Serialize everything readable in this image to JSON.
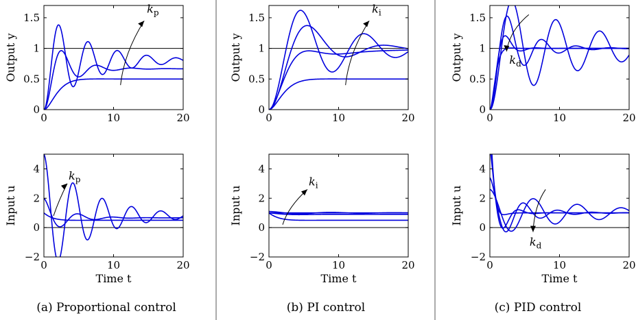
{
  "chart_data": [
    {
      "type": "line",
      "panel": "a-top",
      "ylabel": "Output y",
      "xlim": [
        0,
        20
      ],
      "ylim": [
        0,
        1.7
      ],
      "xticks": [
        "0",
        "10",
        "20"
      ],
      "yticks": [
        "0",
        "0.5",
        "1",
        "1.5"
      ],
      "reference_line": 1,
      "annotation": "kp",
      "series": [
        {
          "model": {
            "kind": "step",
            "final": 0.5,
            "zeta": 0.9,
            "wn": 0.9
          }
        },
        {
          "model": {
            "kind": "step",
            "final": 0.667,
            "zeta": 0.25,
            "wn": 1.3
          }
        },
        {
          "model": {
            "kind": "step",
            "final": 0.8,
            "zeta": 0.1,
            "wn": 1.5
          }
        }
      ]
    },
    {
      "type": "line",
      "panel": "a-bottom",
      "ylabel": "Input u",
      "xlabel": "Time t",
      "xlim": [
        0,
        20
      ],
      "ylim": [
        -2,
        5
      ],
      "xticks": [
        "0",
        "10",
        "20"
      ],
      "yticks": [
        "−2",
        "0",
        "2",
        "4"
      ],
      "reference_line": 0,
      "annotation": "kp",
      "series": [
        {
          "model": {
            "kind": "input",
            "start": 1.0,
            "final": 0.5,
            "zeta": 0.9,
            "wn": 0.9
          }
        },
        {
          "model": {
            "kind": "input",
            "start": 2.0,
            "final": 0.667,
            "zeta": 0.25,
            "wn": 1.3
          }
        },
        {
          "model": {
            "kind": "input",
            "start": 5.0,
            "final": 0.8,
            "zeta": 0.1,
            "wn": 1.5
          }
        }
      ]
    },
    {
      "type": "line",
      "panel": "b-top",
      "ylabel": "Output y",
      "xlim": [
        0,
        20
      ],
      "ylim": [
        0,
        1.7
      ],
      "xticks": [
        "0",
        "10",
        "20"
      ],
      "yticks": [
        "0",
        "0.5",
        "1",
        "1.5"
      ],
      "reference_line": 1,
      "annotation": "ki",
      "series": [
        {
          "model": {
            "kind": "step",
            "final": 0.5,
            "zeta": 0.9,
            "wn": 0.8
          }
        },
        {
          "model": {
            "kind": "slowint",
            "fast": 0.75,
            "zeta": 0.55,
            "wn": 0.7,
            "tau": 9
          }
        },
        {
          "model": {
            "kind": "step",
            "final": 1.0,
            "zeta": 0.3,
            "wn": 0.6
          }
        },
        {
          "model": {
            "kind": "step",
            "final": 1.0,
            "zeta": 0.15,
            "wn": 0.7
          }
        }
      ]
    },
    {
      "type": "line",
      "panel": "b-bottom",
      "ylabel": "Input u",
      "xlabel": "Time t",
      "xlim": [
        0,
        20
      ],
      "ylim": [
        -2,
        5
      ],
      "xticks": [
        "0",
        "10",
        "20"
      ],
      "yticks": [
        "−2",
        "0",
        "2",
        "4"
      ],
      "reference_line": 0,
      "annotation": "ki",
      "series": [
        {
          "model": {
            "kind": "input",
            "start": 1.0,
            "final": 0.5,
            "zeta": 0.9,
            "wn": 0.8,
            "amp": 0.2
          }
        },
        {
          "model": {
            "kind": "input",
            "start": 1.0,
            "final": 0.9,
            "zeta": 0.5,
            "wn": 0.7,
            "amp": 0.6
          }
        },
        {
          "model": {
            "kind": "input",
            "start": 1.0,
            "final": 1.0,
            "zeta": 0.3,
            "wn": 0.6,
            "amp": 0.9
          }
        },
        {
          "model": {
            "kind": "input",
            "start": 1.1,
            "final": 1.0,
            "zeta": 0.15,
            "wn": 0.7,
            "amp": 1.1
          }
        }
      ]
    },
    {
      "type": "line",
      "panel": "c-top",
      "ylabel": "Output y",
      "xlim": [
        0,
        20
      ],
      "ylim": [
        0,
        1.7
      ],
      "xticks": [
        "0",
        "10",
        "20"
      ],
      "yticks": [
        "0",
        "0.5",
        "1",
        "1.5"
      ],
      "reference_line": 1,
      "annotation": "kd",
      "series": [
        {
          "model": {
            "kind": "step",
            "final": 1.0,
            "zeta": 0.08,
            "wn": 1.0
          }
        },
        {
          "model": {
            "kind": "step",
            "final": 1.0,
            "zeta": 0.2,
            "wn": 1.3
          }
        },
        {
          "model": {
            "kind": "step",
            "final": 1.0,
            "zeta": 0.45,
            "wn": 1.6
          }
        },
        {
          "model": {
            "kind": "step",
            "final": 1.0,
            "zeta": 0.85,
            "wn": 2.0
          }
        }
      ]
    },
    {
      "type": "line",
      "panel": "c-bottom",
      "ylabel": "Input u",
      "xlabel": "Time t",
      "xlim": [
        0,
        20
      ],
      "ylim": [
        -2,
        5
      ],
      "xticks": [
        "0",
        "10",
        "20"
      ],
      "yticks": [
        "−2",
        "0",
        "2",
        "4"
      ],
      "reference_line": 0,
      "annotation": "kd",
      "series": [
        {
          "model": {
            "kind": "input",
            "start": 2.6,
            "final": 1.0,
            "zeta": 0.08,
            "wn": 1.0,
            "amp": 1.6
          }
        },
        {
          "model": {
            "kind": "input",
            "start": 3.4,
            "final": 1.0,
            "zeta": 0.2,
            "wn": 1.3,
            "amp": 3.3
          }
        },
        {
          "model": {
            "kind": "input",
            "start": 5.5,
            "final": 1.0,
            "zeta": 0.45,
            "wn": 1.6,
            "amp": 3.0
          }
        },
        {
          "model": {
            "kind": "input",
            "start": 8.0,
            "final": 1.0,
            "zeta": 0.85,
            "wn": 2.0,
            "amp": 2.5
          }
        }
      ]
    }
  ],
  "captions": {
    "a": "(a) Proportional control",
    "b": "(b) PI control",
    "c": "(c) PID control"
  },
  "colors": {
    "series": "#0000dd",
    "axes": "#000000"
  }
}
